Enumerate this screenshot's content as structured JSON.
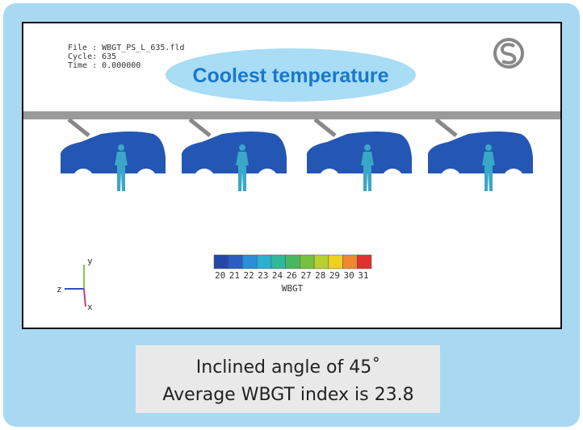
{
  "header": {
    "file_info": [
      "File : WBGT_PS_L_635.fld",
      "Cycle: 635",
      "Time : 0.000000"
    ],
    "callout": "Coolest temperature"
  },
  "colorbar": {
    "labels": [
      "20",
      "21",
      "22",
      "23",
      "24",
      "26",
      "27",
      "28",
      "29",
      "30",
      "31"
    ],
    "title": "WBGT"
  },
  "axes": {
    "y": "y",
    "z": "z",
    "x": "x"
  },
  "caption": {
    "lines": [
      "Inclined angle of 45˚",
      "Average WBGT index is 23.8"
    ]
  }
}
